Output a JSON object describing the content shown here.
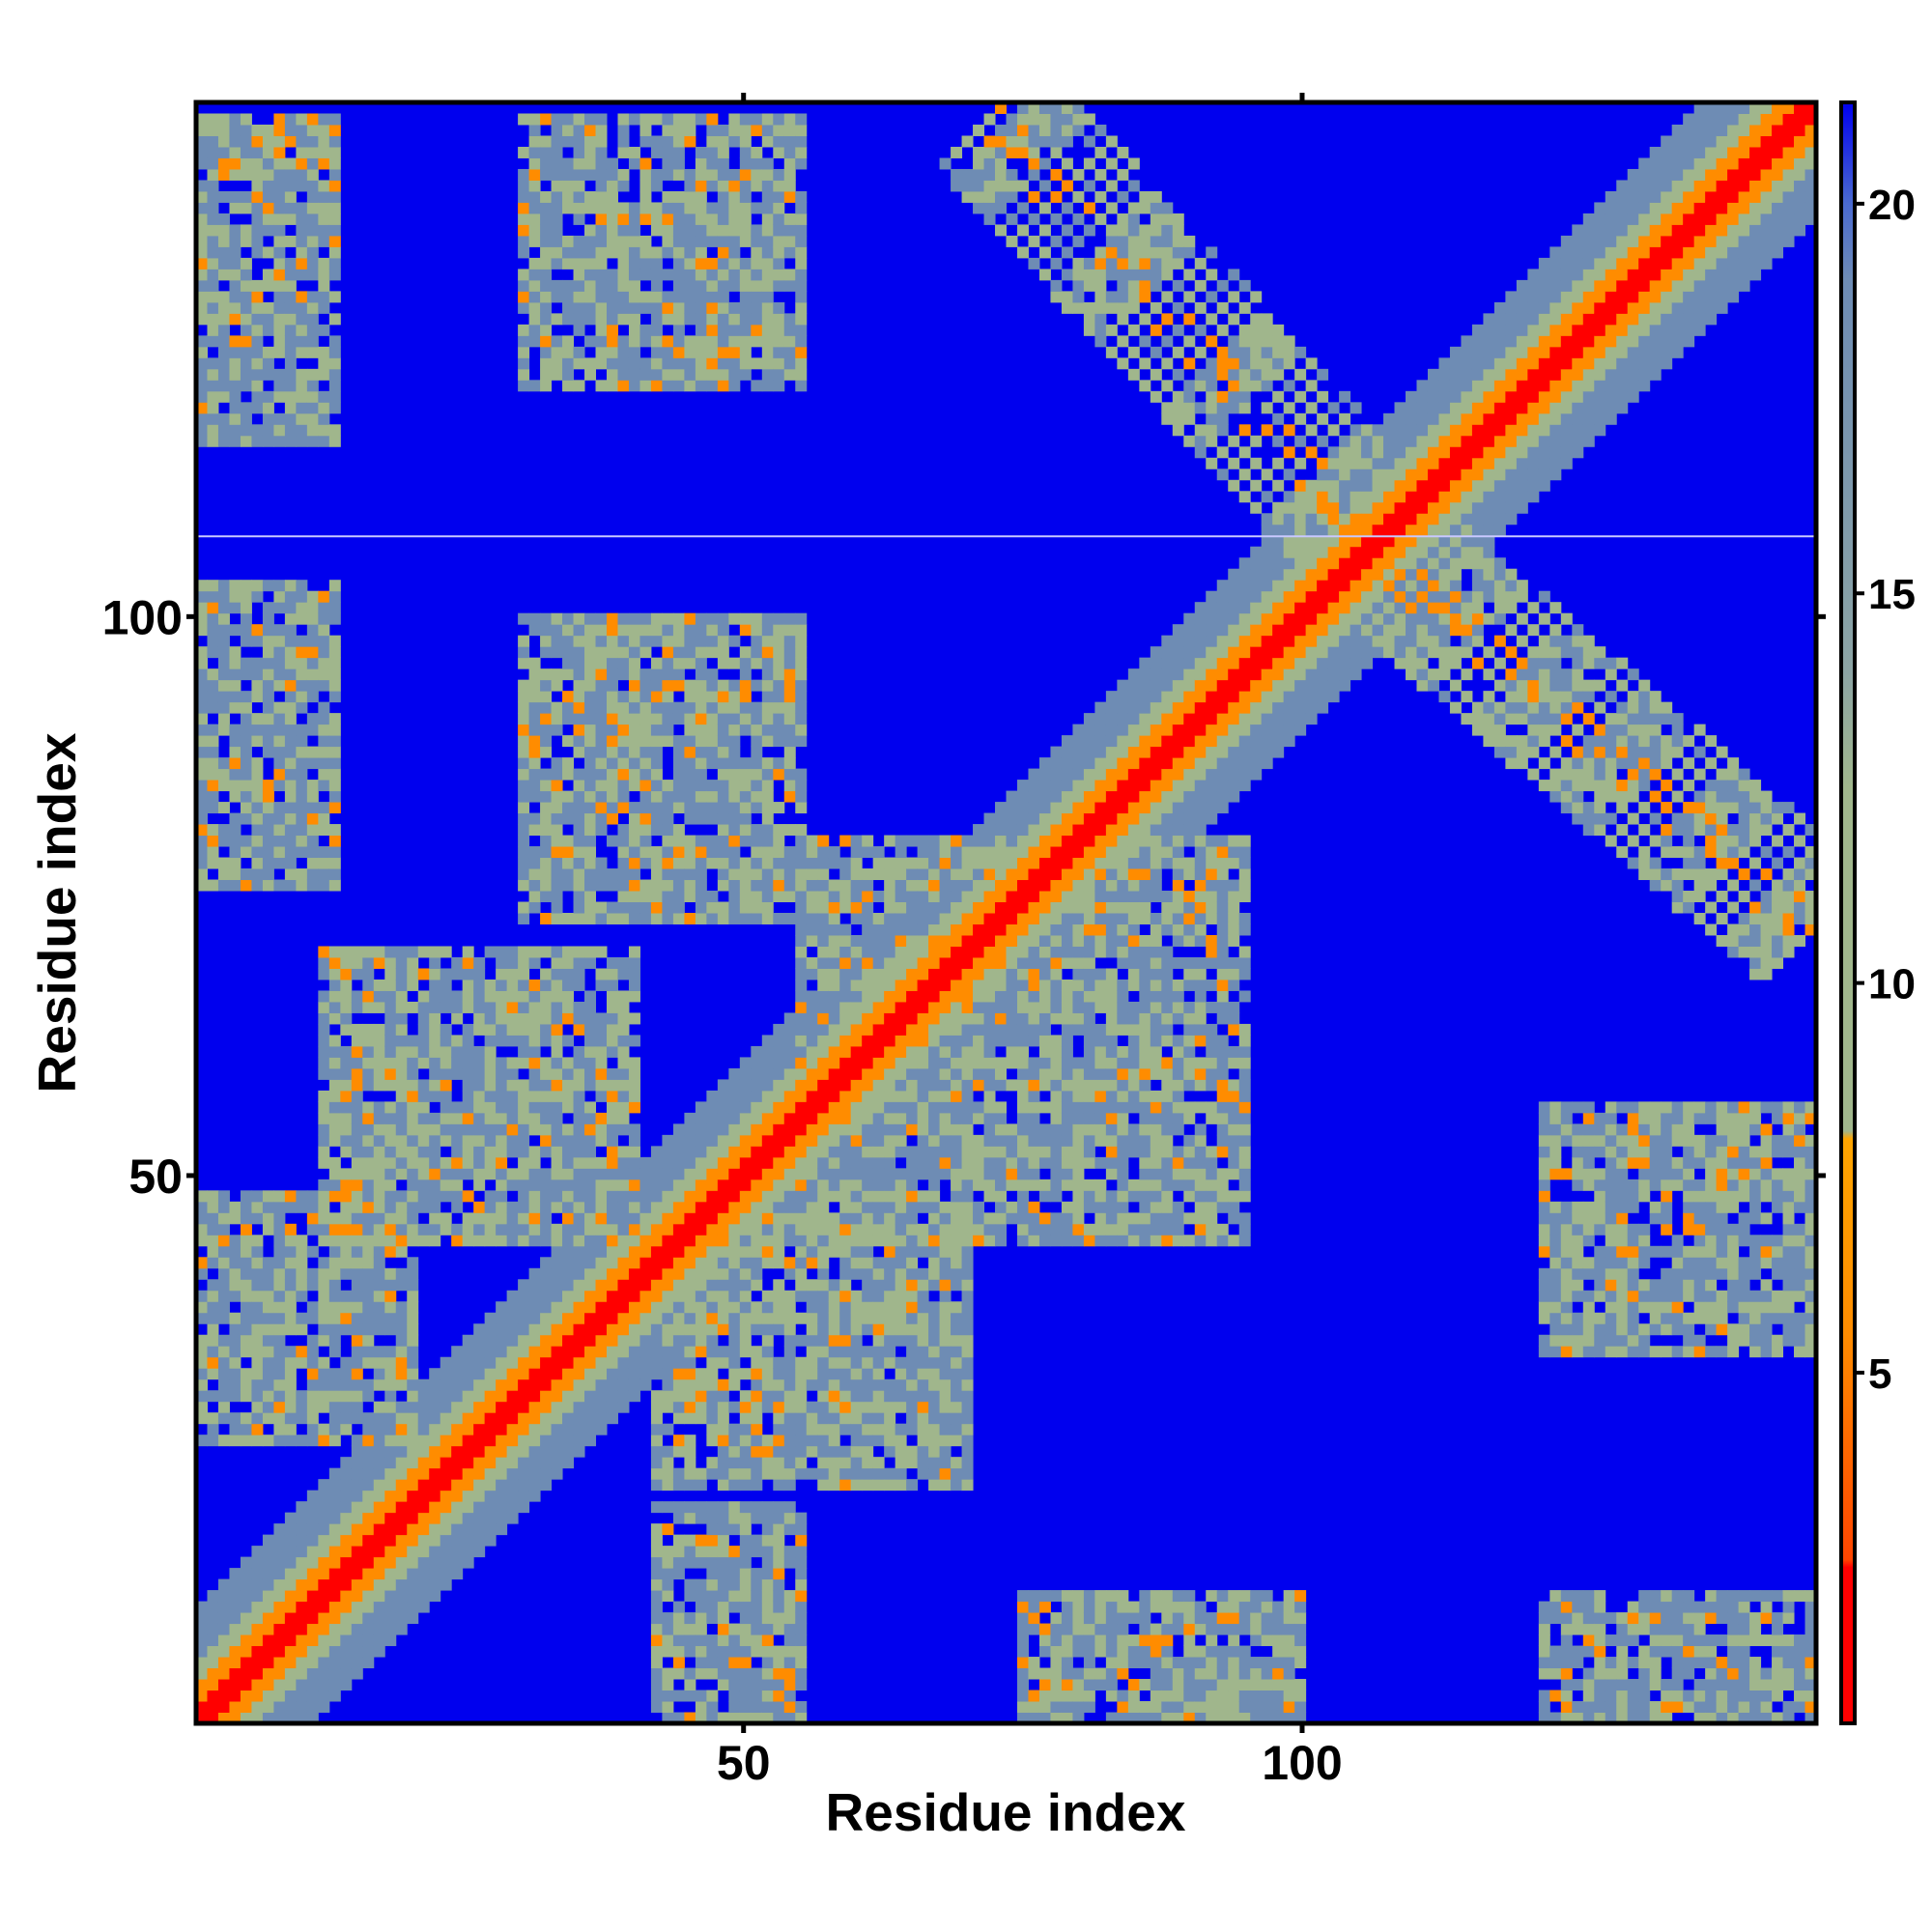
{
  "chart_data": {
    "type": "heatmap",
    "title": "",
    "xlabel": "Residue index",
    "ylabel": "Residue index",
    "xlim": [
      1,
      146
    ],
    "ylim": [
      1,
      146
    ],
    "x_ticks": [
      50,
      100
    ],
    "y_ticks": [
      50,
      100
    ],
    "colorbar": {
      "ticks": [
        5,
        10,
        15,
        20
      ],
      "range": [
        0.5,
        21.3
      ],
      "colors": [
        "#ff0000",
        "#ff8c00",
        "#a0b68c",
        "#6e8cb4",
        "#0000ee"
      ]
    },
    "cell_values_note_free": true,
    "matrix_size": 146,
    "contact_blocks": [
      {
        "x": [
          1,
          13
        ],
        "y": [
          116,
          145
        ],
        "level": 15
      },
      {
        "x": [
          30,
          55
        ],
        "y": [
          121,
          145
        ],
        "level": 15
      },
      {
        "x": [
          1,
          13
        ],
        "y": [
          76,
          103
        ],
        "level": 15
      },
      {
        "x": [
          30,
          55
        ],
        "y": [
          73,
          100
        ],
        "level": 15
      },
      {
        "x": [
          12,
          40
        ],
        "y": [
          44,
          70
        ],
        "level": 13
      },
      {
        "x": [
          1,
          20
        ],
        "y": [
          26,
          48
        ],
        "level": 13
      },
      {
        "x": [
          42,
          70
        ],
        "y": [
          22,
          46
        ],
        "level": 13
      },
      {
        "x": [
          42,
          55
        ],
        "y": [
          1,
          20
        ],
        "level": 15
      },
      {
        "x": [
          75,
          100
        ],
        "y": [
          1,
          12
        ],
        "level": 15
      },
      {
        "x": [
          55,
          95
        ],
        "y": [
          44,
          80
        ],
        "level": 14
      },
      {
        "x": [
          122,
          146
        ],
        "y": [
          34,
          56
        ],
        "level": 14
      },
      {
        "x": [
          122,
          146
        ],
        "y": [
          1,
          12
        ],
        "level": 15
      }
    ],
    "anti_diagonal_bands": [
      {
        "from": [
          72,
          145
        ],
        "to": [
          110,
          103
        ],
        "width": 9
      },
      {
        "from": [
          108,
          105
        ],
        "to": [
          146,
          72
        ],
        "width": 9
      }
    ],
    "blank_row": 107
  }
}
